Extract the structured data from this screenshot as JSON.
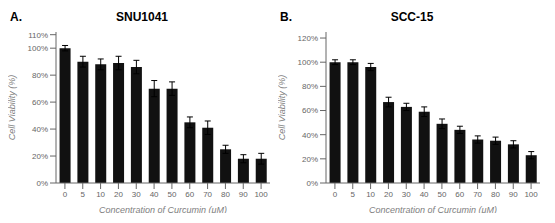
{
  "chart_data": [
    {
      "type": "bar",
      "title": "SNU1041",
      "panel_label": "A.",
      "xlabel": "Concentration of Curcumin (μM)",
      "ylabel": "Cell Viability (%)",
      "categories": [
        "0",
        "5",
        "10",
        "20",
        "30",
        "40",
        "50",
        "60",
        "70",
        "80",
        "90",
        "100"
      ],
      "values": [
        100,
        90,
        88,
        89,
        86,
        70,
        70,
        45,
        41,
        25,
        18,
        18
      ],
      "errors": [
        2,
        4,
        4,
        5,
        5,
        6,
        5,
        4,
        5,
        3,
        3,
        4
      ],
      "color": "#111111",
      "ylim": [
        0,
        112
      ],
      "yticks": [
        {
          "value": 0,
          "label": "0%"
        },
        {
          "value": 20,
          "label": "20%"
        },
        {
          "value": 40,
          "label": "40%"
        },
        {
          "value": 60,
          "label": "60%"
        },
        {
          "value": 80,
          "label": "80%"
        },
        {
          "value": 100,
          "label": "100%"
        },
        {
          "value": 110,
          "label": "110%"
        }
      ],
      "grid": false
    },
    {
      "type": "bar",
      "title": "SCC-15",
      "panel_label": "B.",
      "xlabel": "Concentration of Curcumin (μM)",
      "ylabel": "Cell Viability (%)",
      "categories": [
        "0",
        "5",
        "10",
        "20",
        "30",
        "40",
        "50",
        "60",
        "70",
        "80",
        "90",
        "100"
      ],
      "values": [
        100,
        100,
        96,
        67,
        63,
        59,
        49,
        44,
        36,
        35,
        32,
        23
      ],
      "errors": [
        2,
        2,
        3,
        4,
        3,
        4,
        4,
        3,
        3,
        3,
        3,
        3
      ],
      "color": "#111111",
      "ylim": [
        0,
        125
      ],
      "yticks": [
        {
          "value": 0,
          "label": "0%"
        },
        {
          "value": 20,
          "label": "20%"
        },
        {
          "value": 40,
          "label": "40%"
        },
        {
          "value": 60,
          "label": "60%"
        },
        {
          "value": 80,
          "label": "80%"
        },
        {
          "value": 100,
          "label": "100%"
        },
        {
          "value": 120,
          "label": "120%"
        }
      ],
      "grid": false
    }
  ]
}
